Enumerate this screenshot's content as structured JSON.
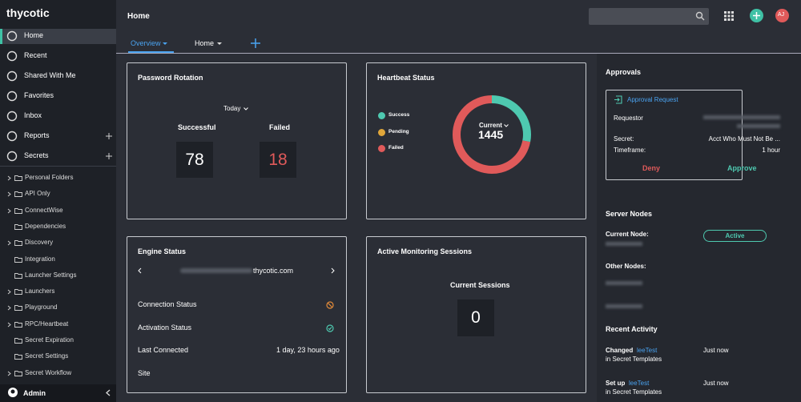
{
  "sidebar": {
    "brand": "thycotic",
    "nav": [
      "Home",
      "Recent",
      "Shared With Me",
      "Favorites",
      "Inbox",
      "Reports",
      "Secrets"
    ],
    "folders": [
      {
        "name": "Personal Folders",
        "expandable": true
      },
      {
        "name": "API Only",
        "expandable": true
      },
      {
        "name": "ConnectWise",
        "expandable": true
      },
      {
        "name": "Dependencies",
        "expandable": false
      },
      {
        "name": "Discovery",
        "expandable": true
      },
      {
        "name": "Integration",
        "expandable": false
      },
      {
        "name": "Launcher Settings",
        "expandable": false
      },
      {
        "name": "Launchers",
        "expandable": true
      },
      {
        "name": "Playground",
        "expandable": true
      },
      {
        "name": "RPC/Heartbeat",
        "expandable": true
      },
      {
        "name": "Secret Expiration",
        "expandable": false
      },
      {
        "name": "Secret Settings",
        "expandable": false
      },
      {
        "name": "Secret Workflow",
        "expandable": true
      }
    ],
    "user": "Admin"
  },
  "header": {
    "title": "Home",
    "avatar": "AJ",
    "tabs": [
      "Overview",
      "Home"
    ]
  },
  "password_rotation": {
    "title": "Password Rotation",
    "period": "Today",
    "successful_label": "Successful",
    "successful": 78,
    "failed_label": "Failed",
    "failed": 18
  },
  "heartbeat": {
    "title": "Heartbeat Status",
    "legend": [
      {
        "label": "Success",
        "color": "#4ec9b0",
        "value": 28
      },
      {
        "label": "Pending",
        "color": "#e0a63a",
        "value": 0
      },
      {
        "label": "Failed",
        "color": "#e05a5a",
        "value": 72
      }
    ],
    "center_label": "Current",
    "total": 1445
  },
  "engine_status": {
    "title": "Engine Status",
    "domain": "thycotic.com",
    "rows": [
      {
        "label": "Connection Status"
      },
      {
        "label": "Activation Status"
      },
      {
        "label": "Last Connected",
        "value": "1 day, 23 hours ago"
      },
      {
        "label": "Site"
      }
    ]
  },
  "monitoring": {
    "title": "Active Monitoring Sessions",
    "label": "Current Sessions",
    "value": 0
  },
  "approvals": {
    "title": "Approvals",
    "request_title": "Approval Request",
    "fields": [
      {
        "label": "Requestor"
      },
      {
        "label": "Secret:",
        "value": "Acct Who Must Not Be ..."
      },
      {
        "label": "Timeframe:",
        "value": "1 hour"
      }
    ],
    "deny": "Deny",
    "approve": "Approve"
  },
  "server_nodes": {
    "title": "Server Nodes",
    "current_label": "Current Node:",
    "status": "Active",
    "other_label": "Other Nodes:"
  },
  "recent_activity": {
    "title": "Recent Activity",
    "items": [
      {
        "action": "Changed",
        "name": "leeTest",
        "context": "in Secret Templates",
        "time": "Just now"
      },
      {
        "action": "Set up",
        "name": "leeTest",
        "context": "in Secret Templates",
        "time": "Just now"
      }
    ]
  }
}
